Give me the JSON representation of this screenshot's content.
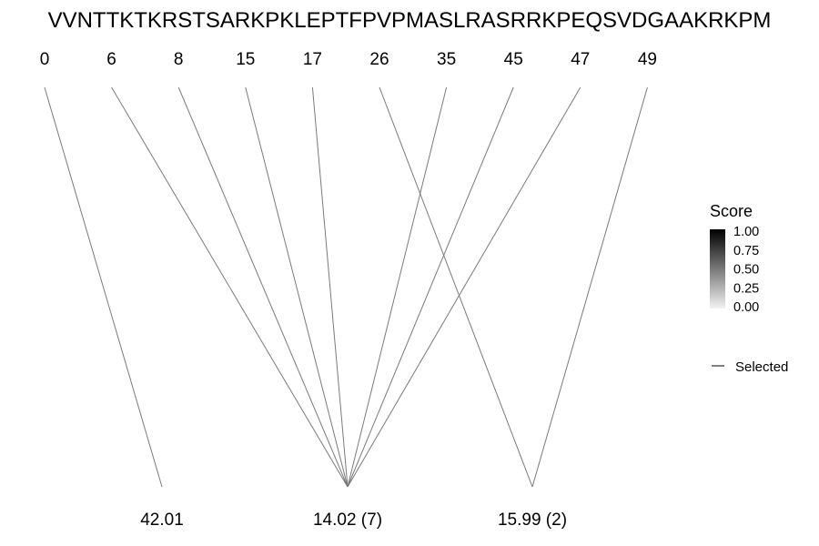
{
  "sequence": "VVNTTKTKRSTSARKPKLEPTFPVPMASLRASRRKPEQSVDGAAKRKPM",
  "positions": [
    "0",
    "6",
    "8",
    "15",
    "17",
    "26",
    "35",
    "45",
    "47",
    "49"
  ],
  "masses": [
    "42.01",
    "14.02 (7)",
    "15.99 (2)"
  ],
  "connections": [
    {
      "position": "0",
      "mass": "42.01"
    },
    {
      "position": "6",
      "mass": "14.02 (7)"
    },
    {
      "position": "8",
      "mass": "14.02 (7)"
    },
    {
      "position": "15",
      "mass": "14.02 (7)"
    },
    {
      "position": "17",
      "mass": "14.02 (7)"
    },
    {
      "position": "26",
      "mass": "15.99 (2)"
    },
    {
      "position": "35",
      "mass": "14.02 (7)"
    },
    {
      "position": "45",
      "mass": "14.02 (7)"
    },
    {
      "position": "47",
      "mass": "14.02 (7)"
    },
    {
      "position": "49",
      "mass": "15.99 (2)"
    }
  ],
  "legend": {
    "score_title": "Score",
    "score_ticks": [
      "1.00",
      "0.75",
      "0.50",
      "0.25",
      "0.00"
    ],
    "selected_label": "Selected"
  },
  "colors": {
    "line": "#7a7a7a",
    "gradient_high": "#000000",
    "gradient_low": "#f2f2f2"
  }
}
